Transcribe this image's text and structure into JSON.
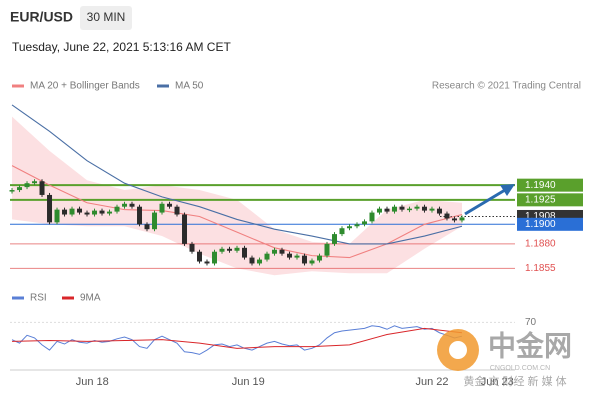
{
  "chart_data": {
    "type": "candlestick",
    "title": "EUR/USD",
    "timeframe": "30 MIN",
    "subtitle": "Tuesday, June 22, 2021 5:13:16 AM CET",
    "credit": "Research © 2021 Trading Central",
    "up_color": "#2e8b2e",
    "down_color": "#2b2b2b",
    "x": [
      0,
      1,
      2,
      3,
      4,
      5,
      6,
      7,
      8,
      9,
      10,
      11,
      12,
      13,
      14,
      15,
      16,
      17,
      18,
      19,
      20,
      21,
      22,
      23,
      24,
      25,
      26,
      27,
      28,
      29,
      30,
      31,
      32,
      33,
      34,
      35,
      36,
      37,
      38,
      39,
      40,
      41,
      42,
      43,
      44,
      45,
      46,
      47,
      48,
      49,
      50,
      51,
      52,
      53,
      54,
      55,
      56,
      57,
      58,
      59,
      60
    ],
    "values": [
      1.1935,
      1.1938,
      1.1942,
      1.1944,
      1.193,
      1.1902,
      1.1915,
      1.191,
      1.1916,
      1.1912,
      1.191,
      1.1914,
      1.1911,
      1.1913,
      1.1918,
      1.1921,
      1.1918,
      1.19,
      1.1895,
      1.1912,
      1.1921,
      1.1918,
      1.191,
      1.188,
      1.1872,
      1.1862,
      1.186,
      1.1872,
      1.1875,
      1.1873,
      1.1876,
      1.1866,
      1.186,
      1.1864,
      1.187,
      1.1874,
      1.187,
      1.1866,
      1.1868,
      1.186,
      1.1863,
      1.1868,
      1.188,
      1.189,
      1.1896,
      1.1898,
      1.19,
      1.1903,
      1.1912,
      1.1916,
      1.1913,
      1.1918,
      1.1915,
      1.1916,
      1.1918,
      1.1914,
      1.1916,
      1.1911,
      1.1906,
      1.1904,
      1.1907
    ],
    "xlim": [
      -0.27,
      67.07
    ],
    "xticks": [
      {
        "value": 10.7,
        "label": "Jun 18"
      },
      {
        "value": 31.5,
        "label": "Jun 19"
      },
      {
        "value": 56,
        "label": "Jun 22"
      },
      {
        "value": 64.7,
        "label": "Jun 23"
      }
    ],
    "ylim": [
      1.1838,
      1.2027
    ],
    "levels": [
      {
        "value": 1.194,
        "label": "1.1940",
        "color": "#5aa02c"
      },
      {
        "value": 1.1925,
        "label": "1.1925",
        "color": "#5aa02c"
      },
      {
        "value": 1.1908,
        "label": "1.1908",
        "color": "#333333"
      },
      {
        "value": 1.19,
        "label": "1.1900",
        "color": "#2a6fd6"
      },
      {
        "value": 1.188,
        "label": "1.1880",
        "color": "#e05050"
      },
      {
        "value": 1.1855,
        "label": "1.1855",
        "color": "#e05050"
      }
    ],
    "series": [
      {
        "name": "MA 20 + Bollinger Bands",
        "color": "#f08080",
        "band_color": "#fbd5d8",
        "x": [
          0,
          5,
          10,
          15,
          20,
          25,
          30,
          35,
          40,
          45,
          50,
          55,
          60
        ],
        "values": [
          1.196,
          1.194,
          1.1922,
          1.1915,
          1.1914,
          1.1908,
          1.1892,
          1.1876,
          1.1868,
          1.1866,
          1.188,
          1.19,
          1.191
        ],
        "upper": [
          1.201,
          1.1975,
          1.1945,
          1.1935,
          1.194,
          1.1935,
          1.1925,
          1.1895,
          1.1882,
          1.188,
          1.1915,
          1.1925,
          1.1922
        ],
        "lower": [
          1.1905,
          1.19,
          1.1898,
          1.1898,
          1.1888,
          1.187,
          1.1855,
          1.1848,
          1.1852,
          1.185,
          1.185,
          1.1875,
          1.1898
        ]
      },
      {
        "name": "MA 50",
        "color": "#4a6fa5",
        "x": [
          0,
          5,
          10,
          15,
          20,
          25,
          30,
          35,
          40,
          45,
          50,
          55,
          60
        ],
        "values": [
          1.2022,
          1.1995,
          1.1965,
          1.1942,
          1.1928,
          1.1918,
          1.1905,
          1.1895,
          1.1888,
          1.188,
          1.188,
          1.1888,
          1.1898
        ]
      }
    ],
    "rsi": {
      "ylim": [
        15,
        75
      ],
      "yticks": [
        70
      ],
      "series": [
        {
          "name": "RSI",
          "color": "#5a7fd6",
          "x": [
            0,
            1,
            2,
            3,
            4,
            5,
            6,
            7,
            8,
            9,
            10,
            11,
            12,
            13,
            14,
            15,
            16,
            17,
            18,
            19,
            20,
            21,
            22,
            23,
            24,
            25,
            26,
            27,
            28,
            29,
            30,
            31,
            32,
            33,
            34,
            35,
            36,
            37,
            38,
            39,
            40,
            41,
            42,
            43,
            44,
            45,
            46,
            47,
            48,
            49,
            50,
            51,
            52,
            53,
            54,
            55,
            56,
            57,
            58,
            59,
            60
          ],
          "values": [
            50,
            46,
            55,
            52,
            44,
            38,
            48,
            45,
            50,
            47,
            46,
            49,
            47,
            48,
            51,
            53,
            50,
            42,
            40,
            50,
            54,
            50,
            46,
            36,
            35,
            33,
            38,
            44,
            45,
            42,
            44,
            40,
            38,
            42,
            46,
            48,
            45,
            43,
            44,
            38,
            40,
            44,
            52,
            58,
            60,
            61,
            62,
            63,
            66,
            65,
            62,
            66,
            63,
            64,
            65,
            62,
            63,
            58,
            55,
            52,
            54
          ]
        },
        {
          "name": "9MA",
          "color": "#d9262a",
          "x": [
            0,
            5,
            10,
            15,
            20,
            25,
            30,
            35,
            40,
            45,
            50,
            55,
            60
          ],
          "values": [
            48,
            49,
            48,
            49,
            50,
            46,
            40,
            42,
            42,
            44,
            56,
            63,
            58
          ]
        }
      ]
    },
    "watermark": {
      "logo": "中金网",
      "site": "CNGOLD.COM.CN",
      "slogan": "黄金 文 财经 新 媒 体"
    }
  }
}
